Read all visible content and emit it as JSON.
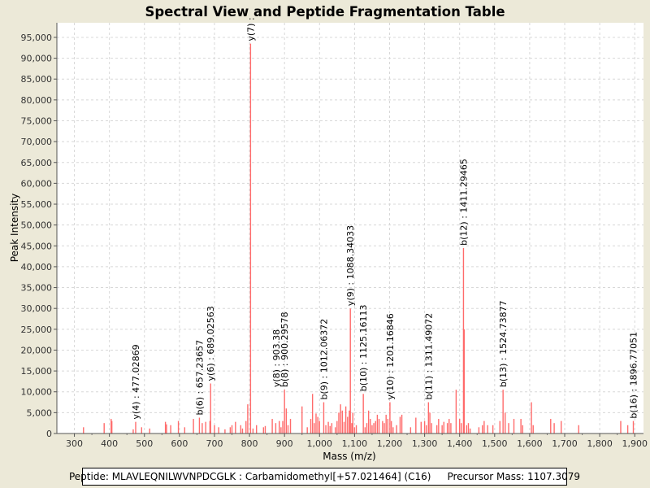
{
  "chart_data": {
    "type": "spectrum",
    "title": "Spectral View and Peptide Fragmentation Table",
    "xlabel": "Mass (m/z)",
    "ylabel": "Peak Intensity",
    "xlim": [
      250,
      1925
    ],
    "ylim": [
      0,
      98500
    ],
    "x_ticks": [
      300,
      400,
      500,
      600,
      700,
      800,
      900,
      1000,
      1100,
      1200,
      1300,
      1400,
      1500,
      1600,
      1700,
      1800,
      1900
    ],
    "x_tick_labels": [
      "300",
      "400",
      "500",
      "600",
      "700",
      "800",
      "900",
      "1,000",
      "1,100",
      "1,200",
      "1,300",
      "1,400",
      "1,500",
      "1,600",
      "1,700",
      "1,800",
      "1,900"
    ],
    "y_ticks": [
      0,
      5000,
      10000,
      15000,
      20000,
      25000,
      30000,
      35000,
      40000,
      45000,
      50000,
      55000,
      60000,
      65000,
      70000,
      75000,
      80000,
      85000,
      90000,
      95000
    ],
    "y_tick_labels": [
      "0",
      "5,000",
      "10,000",
      "15,000",
      "20,000",
      "25,000",
      "30,000",
      "35,000",
      "40,000",
      "45,000",
      "50,000",
      "55,000",
      "60,000",
      "65,000",
      "70,000",
      "75,000",
      "80,000",
      "85,000",
      "90,000",
      "95,000"
    ],
    "grid": true,
    "peaks": [
      [
        326,
        1500
      ],
      [
        385,
        2500
      ],
      [
        405,
        3500
      ],
      [
        407,
        3000
      ],
      [
        468,
        1000
      ],
      [
        475,
        2800
      ],
      [
        492,
        1500
      ],
      [
        515,
        1200
      ],
      [
        560,
        2800
      ],
      [
        563,
        2200
      ],
      [
        575,
        2000
      ],
      [
        597,
        3000
      ],
      [
        615,
        1500
      ],
      [
        640,
        3500
      ],
      [
        657,
        3800
      ],
      [
        665,
        2500
      ],
      [
        675,
        2800
      ],
      [
        687,
        3000
      ],
      [
        689,
        12000
      ],
      [
        700,
        2000
      ],
      [
        712,
        1500
      ],
      [
        730,
        1000
      ],
      [
        745,
        1500
      ],
      [
        750,
        2000
      ],
      [
        760,
        2800
      ],
      [
        775,
        2000
      ],
      [
        780,
        1200
      ],
      [
        790,
        3000
      ],
      [
        795,
        7000
      ],
      [
        803,
        93500
      ],
      [
        810,
        1200
      ],
      [
        820,
        2000
      ],
      [
        840,
        1500
      ],
      [
        845,
        1800
      ],
      [
        865,
        3500
      ],
      [
        875,
        2500
      ],
      [
        885,
        3000
      ],
      [
        890,
        1500
      ],
      [
        895,
        3000
      ],
      [
        900,
        10500
      ],
      [
        905,
        6000
      ],
      [
        910,
        2000
      ],
      [
        917,
        3500
      ],
      [
        950,
        6500
      ],
      [
        965,
        1500
      ],
      [
        975,
        3500
      ],
      [
        980,
        9500
      ],
      [
        985,
        2500
      ],
      [
        990,
        4800
      ],
      [
        995,
        4000
      ],
      [
        1000,
        3000
      ],
      [
        1012,
        7500
      ],
      [
        1018,
        2000
      ],
      [
        1025,
        2800
      ],
      [
        1030,
        1800
      ],
      [
        1035,
        2500
      ],
      [
        1045,
        1500
      ],
      [
        1050,
        3000
      ],
      [
        1055,
        5000
      ],
      [
        1060,
        7000
      ],
      [
        1065,
        5500
      ],
      [
        1070,
        2800
      ],
      [
        1075,
        6500
      ],
      [
        1080,
        4000
      ],
      [
        1085,
        5500
      ],
      [
        1088,
        30000
      ],
      [
        1092,
        2500
      ],
      [
        1095,
        5000
      ],
      [
        1100,
        1500
      ],
      [
        1105,
        2000
      ],
      [
        1125,
        9500
      ],
      [
        1130,
        1500
      ],
      [
        1135,
        2500
      ],
      [
        1140,
        5500
      ],
      [
        1145,
        3500
      ],
      [
        1150,
        2000
      ],
      [
        1155,
        2500
      ],
      [
        1160,
        3000
      ],
      [
        1165,
        4500
      ],
      [
        1170,
        3500
      ],
      [
        1180,
        3000
      ],
      [
        1185,
        2500
      ],
      [
        1190,
        4500
      ],
      [
        1195,
        3500
      ],
      [
        1201,
        7500
      ],
      [
        1205,
        3000
      ],
      [
        1210,
        1500
      ],
      [
        1220,
        2000
      ],
      [
        1230,
        4000
      ],
      [
        1235,
        4500
      ],
      [
        1260,
        1500
      ],
      [
        1275,
        3800
      ],
      [
        1290,
        2800
      ],
      [
        1300,
        3000
      ],
      [
        1305,
        2000
      ],
      [
        1311,
        7500
      ],
      [
        1315,
        5000
      ],
      [
        1320,
        2500
      ],
      [
        1335,
        2000
      ],
      [
        1340,
        3500
      ],
      [
        1350,
        2000
      ],
      [
        1355,
        2800
      ],
      [
        1365,
        2500
      ],
      [
        1370,
        3500
      ],
      [
        1375,
        2500
      ],
      [
        1390,
        10500
      ],
      [
        1400,
        3500
      ],
      [
        1405,
        2500
      ],
      [
        1411,
        44500
      ],
      [
        1413,
        25000
      ],
      [
        1420,
        2000
      ],
      [
        1425,
        2500
      ],
      [
        1430,
        1200
      ],
      [
        1455,
        1500
      ],
      [
        1465,
        2000
      ],
      [
        1470,
        3000
      ],
      [
        1480,
        2000
      ],
      [
        1495,
        2000
      ],
      [
        1515,
        3000
      ],
      [
        1524,
        10500
      ],
      [
        1530,
        5000
      ],
      [
        1540,
        2500
      ],
      [
        1555,
        3500
      ],
      [
        1575,
        3500
      ],
      [
        1580,
        2000
      ],
      [
        1605,
        7500
      ],
      [
        1610,
        2000
      ],
      [
        1660,
        3500
      ],
      [
        1670,
        2500
      ],
      [
        1690,
        3000
      ],
      [
        1740,
        2000
      ],
      [
        1860,
        3000
      ],
      [
        1880,
        2000
      ],
      [
        1896,
        3000
      ]
    ],
    "annotations": [
      {
        "mz": 475,
        "text": "y(4) : 477.02869"
      },
      {
        "mz": 657,
        "text": "b(6) : 657.23657"
      },
      {
        "mz": 689,
        "text": "y(6) : 689.02563"
      },
      {
        "mz": 803,
        "text": "y(7) :"
      },
      {
        "mz": 900,
        "text": "b(8) : 900.29578"
      },
      {
        "mz": 900,
        "text": "y(8) : 903.38"
      },
      {
        "mz": 1012,
        "text": "b(9) : 1012.06372"
      },
      {
        "mz": 1088,
        "text": "y(9) : 1088.34033"
      },
      {
        "mz": 1125,
        "text": "b(10) : 1125.16113"
      },
      {
        "mz": 1201,
        "text": "y(10) : 1201.16846"
      },
      {
        "mz": 1311,
        "text": "b(11) : 1311.49072"
      },
      {
        "mz": 1411,
        "text": "b(12) : 1411.29465"
      },
      {
        "mz": 1524,
        "text": "b(13) : 1524.73877"
      },
      {
        "mz": 1896,
        "text": "b(16) : 1896.77051"
      }
    ]
  },
  "footer": {
    "peptide": "Peptide: MLAVLEQNILWVNPDCGLK : Carbamidomethyl[+57.021464] (C16)",
    "precursor": "Precursor Mass: 1107.3079"
  },
  "colors": {
    "peak": "#FF6B6B",
    "plot_bg": "#FFFFFF",
    "grid": "#D8D8D8",
    "window_bg": "#ECE9D8"
  }
}
